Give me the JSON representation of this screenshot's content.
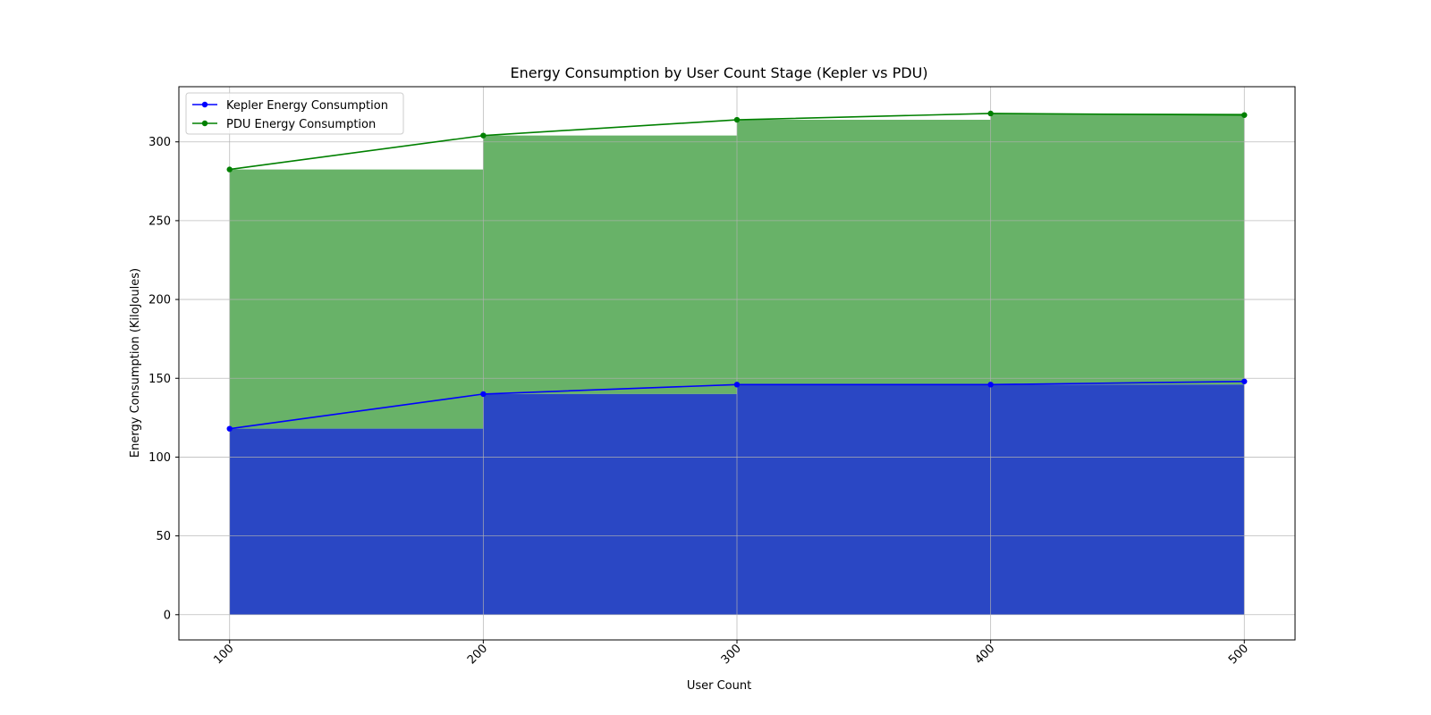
{
  "chart_data": {
    "type": "area",
    "title": "Energy Consumption by User Count Stage (Kepler vs PDU)",
    "xlabel": "User Count",
    "ylabel": "Energy Consumption (KiloJoules)",
    "x": [
      100,
      200,
      300,
      400,
      500
    ],
    "x_ticks": [
      "100",
      "200",
      "300",
      "400",
      "500"
    ],
    "y_ticks": [
      0,
      50,
      100,
      150,
      200,
      250,
      300
    ],
    "xlim": [
      80,
      520
    ],
    "ylim": [
      -16,
      335
    ],
    "grid": true,
    "legend_position": "top-left",
    "series": [
      {
        "name": "Kepler Energy Consumption",
        "values": [
          118,
          140,
          146,
          146,
          148
        ],
        "line_color": "#0000ff",
        "fill_color": "#2a47c4"
      },
      {
        "name": "PDU Energy Consumption",
        "values": [
          282.5,
          304,
          314,
          318,
          317
        ],
        "line_color": "#008000",
        "fill_color": "#68b268"
      }
    ]
  }
}
